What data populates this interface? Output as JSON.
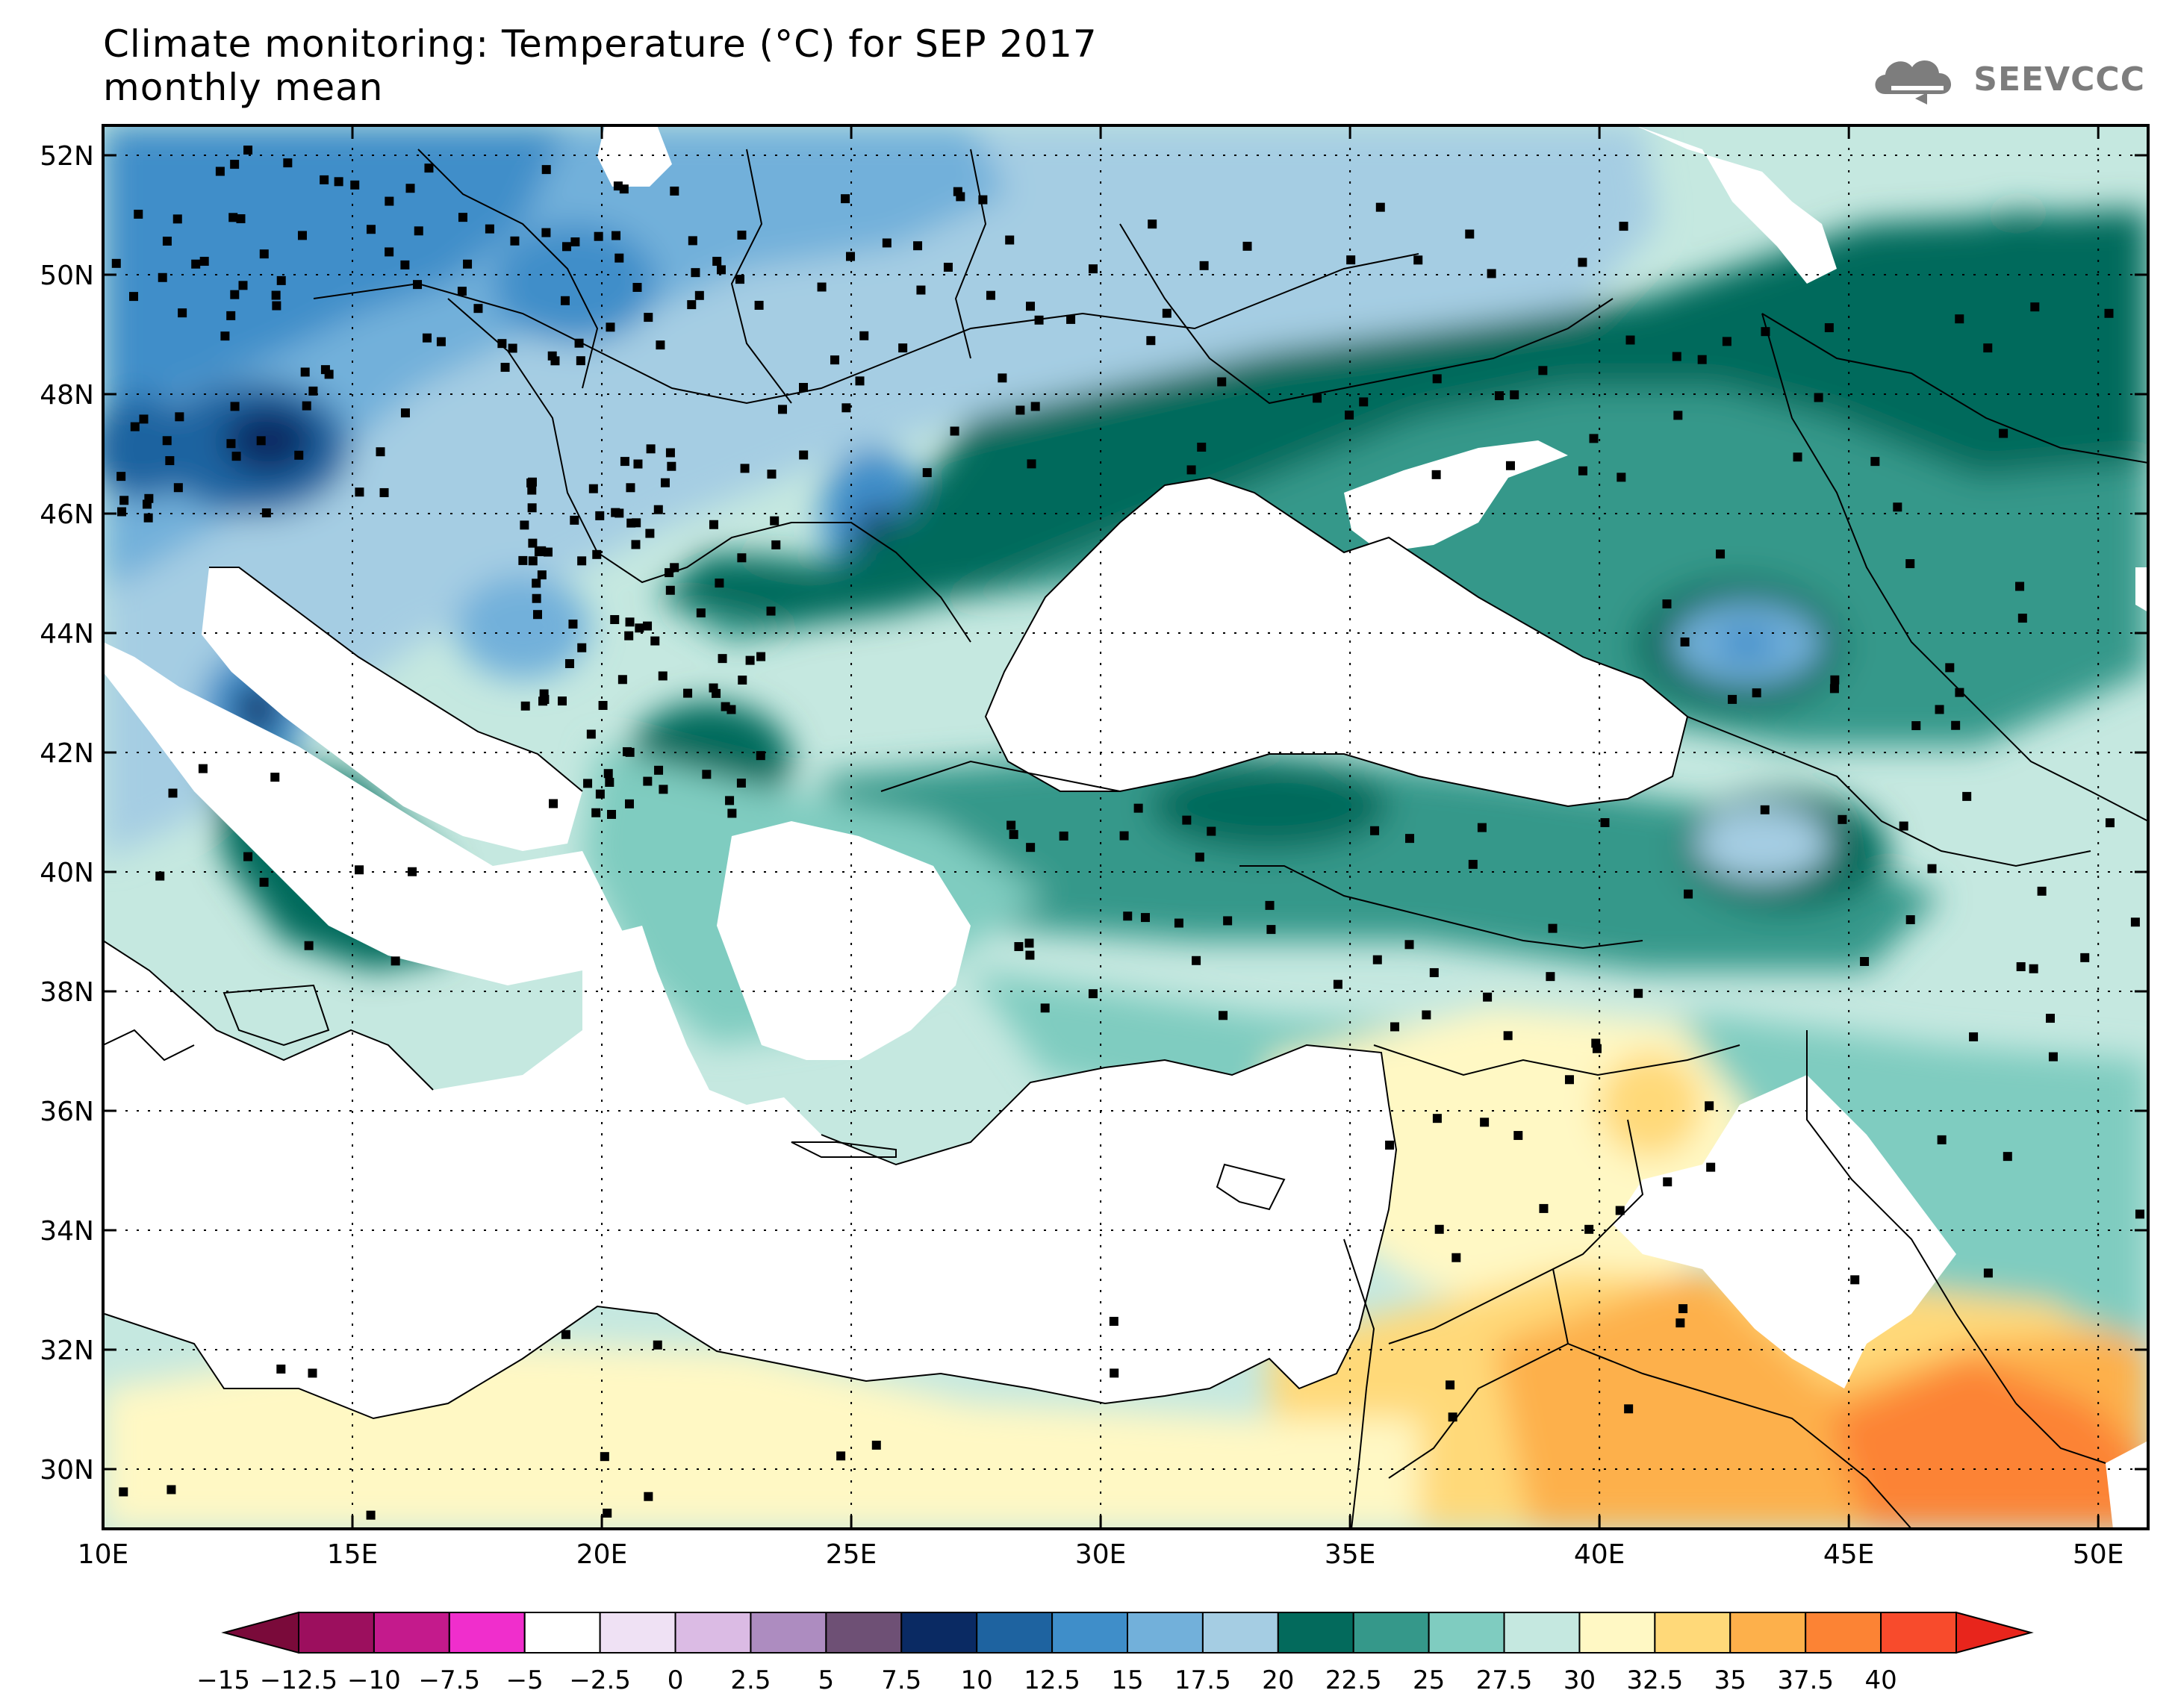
{
  "title": {
    "line1": "Climate monitoring: Temperature (°C) for SEP 2017",
    "line2": "monthly mean"
  },
  "logo": {
    "text": "SEEVCCC",
    "icon": "cloud-icon"
  },
  "map": {
    "lat_labels": [
      "52N",
      "50N",
      "48N",
      "46N",
      "44N",
      "42N",
      "40N",
      "38N",
      "36N",
      "34N",
      "32N",
      "30N"
    ],
    "lon_labels": [
      "10E",
      "15E",
      "20E",
      "25E",
      "30E",
      "35E",
      "40E",
      "45E",
      "50E"
    ],
    "lat_values": [
      52,
      50,
      48,
      46,
      44,
      42,
      40,
      38,
      36,
      34,
      32,
      30
    ],
    "lon_values": [
      10,
      15,
      20,
      25,
      30,
      35,
      40,
      45,
      50
    ],
    "extent": {
      "lon_min": 10,
      "lon_max": 51,
      "lat_min": 29,
      "lat_max": 52.5
    },
    "grid": "dotted"
  },
  "colorbar": {
    "labels": [
      "−15",
      "−12.5",
      "−10",
      "−7.5",
      "−5",
      "−2.5",
      "0",
      "2.5",
      "5",
      "7.5",
      "10",
      "12.5",
      "15",
      "17.5",
      "20",
      "22.5",
      "25",
      "27.5",
      "30",
      "32.5",
      "35",
      "37.5",
      "40"
    ],
    "low_arrow_color": "#7a0a3a",
    "high_arrow_color": "#e8251c",
    "colors": [
      "#9c0f5e",
      "#c41a8c",
      "#f02ecc",
      "#ffffff",
      "#efe1f4",
      "#dbbbe4",
      "#ad8cc0",
      "#6e5075",
      "#0a2a63",
      "#1e63a0",
      "#3f8ec9",
      "#72b0da",
      "#a5cde3",
      "#036a5c",
      "#35988a",
      "#7fccc0",
      "#c5e8e0",
      "#fff8c4",
      "#ffd979",
      "#fdb04b",
      "#fc8334",
      "#f84b2c"
    ]
  }
}
